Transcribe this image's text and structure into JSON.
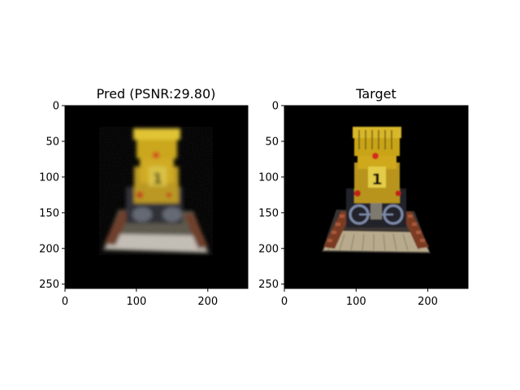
{
  "figure": {
    "panels": [
      {
        "id": "pred",
        "title": "Pred (PSNR:29.80)",
        "xticks": [
          0,
          100,
          200
        ],
        "yticks": [
          0,
          50,
          100,
          150,
          200,
          250
        ],
        "image_desc": "blurry, noisy render of a yellow LEGO bulldozer with a '1' on its front, on black background"
      },
      {
        "id": "target",
        "title": "Target",
        "xticks": [
          0,
          100,
          200
        ],
        "yticks": [
          0,
          50,
          100,
          150,
          200,
          250
        ],
        "image_desc": "clear render of a yellow LEGO bulldozer with a '1' on its front, red lights and grey wheels, on black background"
      }
    ],
    "image_extent": [
      0,
      256
    ],
    "colors": {
      "background": "#000000",
      "body": "#c9a418",
      "dark_body": "#7a5a10",
      "light": "#e6d25a",
      "red": "#d42a1a",
      "grey": "#8a8f98",
      "brown": "#7a3a22",
      "beige": "#b8aa8c"
    }
  }
}
